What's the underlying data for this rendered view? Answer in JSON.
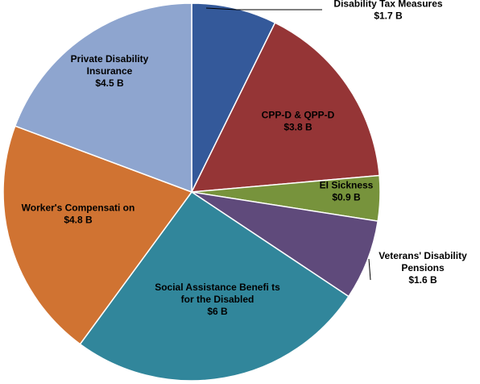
{
  "chart_data": {
    "type": "pie",
    "title": "",
    "units": "B",
    "slices": [
      {
        "name": "Disability Tax Measures",
        "value": 1.7,
        "label_lines": [
          "Disability Tax Measures",
          "$1.7 B"
        ],
        "color": "#34599a"
      },
      {
        "name": "CPP-D & QPP-D",
        "value": 3.8,
        "label_lines": [
          "CPP-D & QPP-D",
          "$3.8 B"
        ],
        "color": "#953536"
      },
      {
        "name": "EI Sickness",
        "value": 0.9,
        "label_lines": [
          "EI Sickness",
          "$0.9 B"
        ],
        "color": "#77933c"
      },
      {
        "name": "Veterans' Disability Pensions",
        "value": 1.6,
        "label_lines": [
          "Veterans' Disability",
          "Pensions",
          "$1.6 B"
        ],
        "color": "#5f4a7b"
      },
      {
        "name": "Social Assistance Benefits for the Disabled",
        "value": 6,
        "label_lines": [
          "Social Assistance Benefi   ts",
          "for the Disabled",
          "$6 B"
        ],
        "color": "#31869b"
      },
      {
        "name": "Worker's Compensation",
        "value": 4.8,
        "label_lines": [
          "Worker's Compensati   on",
          "$4.8 B"
        ],
        "color": "#d07332"
      },
      {
        "name": "Private Disability Insurance",
        "value": 4.5,
        "label_lines": [
          "Private Disability",
          "Insurance",
          "$4.5 B"
        ],
        "color": "#8ea5cf"
      }
    ],
    "legend": "none",
    "data_labels": "name and value"
  }
}
